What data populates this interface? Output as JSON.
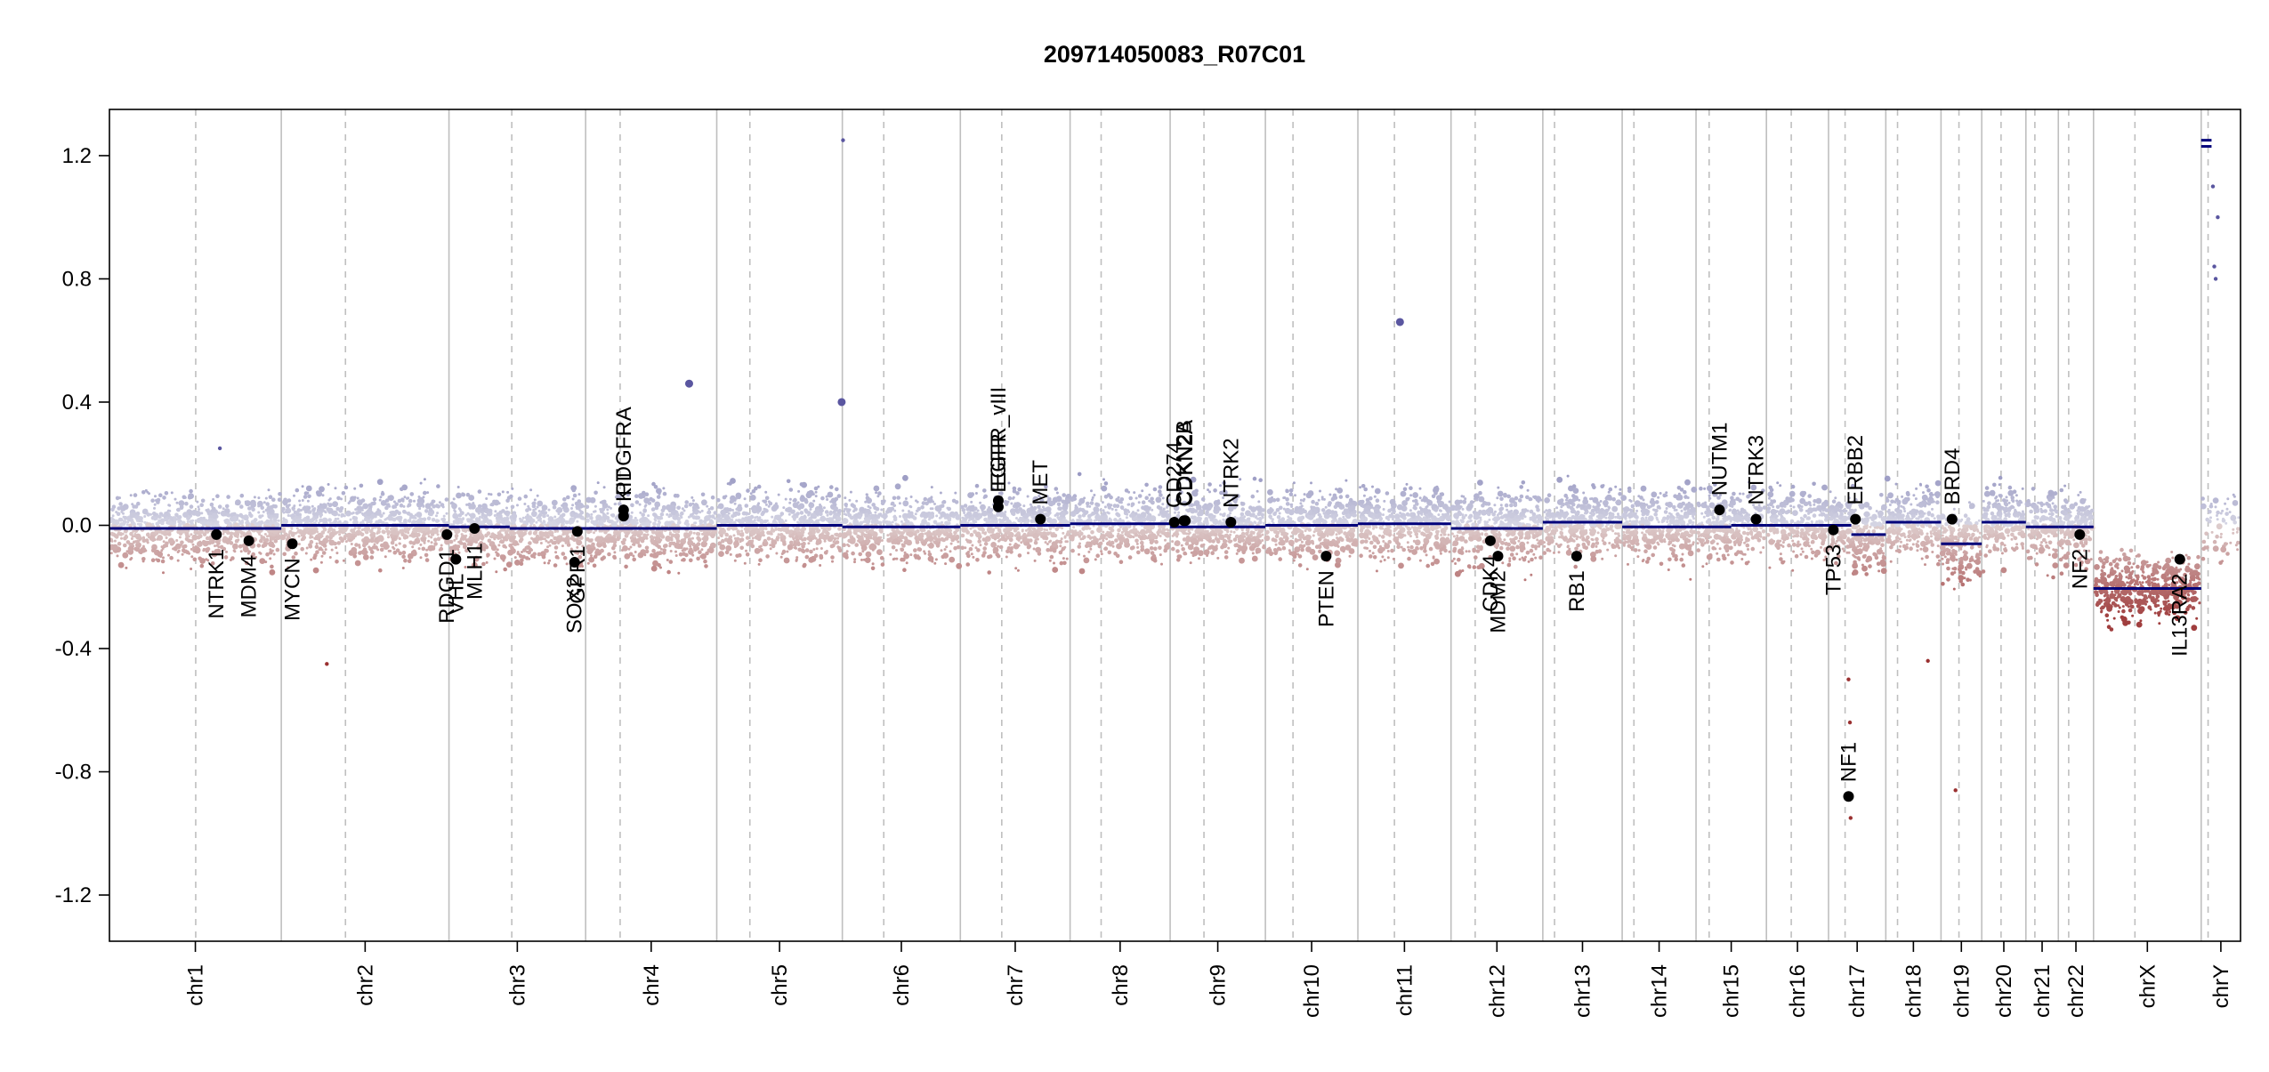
{
  "chart_data": {
    "type": "scatter",
    "title": "209714050083_R07C01",
    "xlabel": "",
    "ylabel": "",
    "ylim": [
      -1.35,
      1.35
    ],
    "yticks": [
      -1.2,
      -0.8,
      -0.4,
      0.0,
      0.4,
      0.8,
      1.2
    ],
    "ytick_labels": [
      "-1.2",
      "-0.8",
      "-0.4",
      "0.0",
      "0.4",
      "0.8",
      "1.2"
    ],
    "grid": false,
    "colors": {
      "gain": "#8080b8",
      "loss": "#b06060",
      "segment": "#00007a",
      "gene_point": "#000000",
      "chrom_boundary": "#bfbfbf",
      "centromere": "#bfbfbf"
    },
    "chromosomes": [
      {
        "name": "chr1",
        "start": 0,
        "end": 249,
        "centromere": 125
      },
      {
        "name": "chr2",
        "start": 249,
        "end": 492,
        "centromere": 93
      },
      {
        "name": "chr3",
        "start": 492,
        "end": 690,
        "centromere": 91
      },
      {
        "name": "chr4",
        "start": 690,
        "end": 880,
        "centromere": 50
      },
      {
        "name": "chr5",
        "start": 880,
        "end": 1062,
        "centromere": 48
      },
      {
        "name": "chr6",
        "start": 1062,
        "end": 1233,
        "centromere": 60
      },
      {
        "name": "chr7",
        "start": 1233,
        "end": 1392,
        "centromere": 60
      },
      {
        "name": "chr8",
        "start": 1392,
        "end": 1537,
        "centromere": 45
      },
      {
        "name": "chr9",
        "start": 1537,
        "end": 1675,
        "centromere": 49
      },
      {
        "name": "chr10",
        "start": 1675,
        "end": 1809,
        "centromere": 40
      },
      {
        "name": "chr11",
        "start": 1809,
        "end": 1944,
        "centromere": 53
      },
      {
        "name": "chr12",
        "start": 1944,
        "end": 2077,
        "centromere": 35
      },
      {
        "name": "chr13",
        "start": 2077,
        "end": 2192,
        "centromere": 17
      },
      {
        "name": "chr14",
        "start": 2192,
        "end": 2299,
        "centromere": 17
      },
      {
        "name": "chr15",
        "start": 2299,
        "end": 2401,
        "centromere": 19
      },
      {
        "name": "chr16",
        "start": 2401,
        "end": 2491,
        "centromere": 36
      },
      {
        "name": "chr17",
        "start": 2491,
        "end": 2574,
        "centromere": 24
      },
      {
        "name": "chr18",
        "start": 2574,
        "end": 2654,
        "centromere": 17
      },
      {
        "name": "chr19",
        "start": 2654,
        "end": 2713,
        "centromere": 26
      },
      {
        "name": "chr20",
        "start": 2713,
        "end": 2777,
        "centromere": 28
      },
      {
        "name": "chr21",
        "start": 2777,
        "end": 2824,
        "centromere": 13
      },
      {
        "name": "chr22",
        "start": 2824,
        "end": 2875,
        "centromere": 15
      },
      {
        "name": "chrX",
        "start": 2875,
        "end": 3031,
        "centromere": 60
      },
      {
        "name": "chrY",
        "start": 3031,
        "end": 3088,
        "centromere": 10
      }
    ],
    "segments": [
      {
        "x0": 0,
        "x1": 125,
        "y": -0.01
      },
      {
        "x0": 125,
        "x1": 249,
        "y": -0.01
      },
      {
        "x0": 249,
        "x1": 492,
        "y": 0.0
      },
      {
        "x0": 492,
        "x1": 580,
        "y": -0.005
      },
      {
        "x0": 580,
        "x1": 690,
        "y": -0.01
      },
      {
        "x0": 690,
        "x1": 880,
        "y": -0.01
      },
      {
        "x0": 880,
        "x1": 1062,
        "y": 0.0
      },
      {
        "x0": 1062,
        "x1": 1233,
        "y": -0.005
      },
      {
        "x0": 1233,
        "x1": 1392,
        "y": 0.0
      },
      {
        "x0": 1392,
        "x1": 1537,
        "y": 0.005
      },
      {
        "x0": 1537,
        "x1": 1675,
        "y": -0.005
      },
      {
        "x0": 1675,
        "x1": 1809,
        "y": 0.0
      },
      {
        "x0": 1809,
        "x1": 1944,
        "y": 0.005
      },
      {
        "x0": 1944,
        "x1": 2077,
        "y": -0.01
      },
      {
        "x0": 2077,
        "x1": 2192,
        "y": 0.01
      },
      {
        "x0": 2192,
        "x1": 2299,
        "y": -0.005
      },
      {
        "x0": 2299,
        "x1": 2350,
        "y": -0.005
      },
      {
        "x0": 2350,
        "x1": 2401,
        "y": 0.0
      },
      {
        "x0": 2401,
        "x1": 2491,
        "y": 0.0
      },
      {
        "x0": 2491,
        "x1": 2524,
        "y": 0.0
      },
      {
        "x0": 2524,
        "x1": 2574,
        "y": -0.03
      },
      {
        "x0": 2574,
        "x1": 2654,
        "y": 0.01
      },
      {
        "x0": 2654,
        "x1": 2713,
        "y": -0.06
      },
      {
        "x0": 2713,
        "x1": 2777,
        "y": 0.01
      },
      {
        "x0": 2777,
        "x1": 2824,
        "y": -0.005
      },
      {
        "x0": 2824,
        "x1": 2875,
        "y": -0.005
      },
      {
        "x0": 2875,
        "x1": 3031,
        "y": -0.205
      },
      {
        "x0": 3031,
        "x1": 3046,
        "y": 1.25
      },
      {
        "x0": 3031,
        "x1": 3046,
        "y": 1.23
      }
    ],
    "genes": [
      {
        "name": "NTRK1",
        "x": 155,
        "y": -0.03,
        "side": "below"
      },
      {
        "name": "MDM4",
        "x": 202,
        "y": -0.05,
        "side": "below"
      },
      {
        "name": "MYCN",
        "x": 265,
        "y": -0.06,
        "side": "below"
      },
      {
        "name": "RDGD1",
        "x": 489,
        "y": -0.03,
        "side": "below"
      },
      {
        "name": "VHL",
        "x": 502,
        "y": -0.11,
        "side": "below"
      },
      {
        "name": "MLH1",
        "x": 529,
        "y": -0.01,
        "side": "below"
      },
      {
        "name": "SOX2",
        "x": 674,
        "y": -0.12,
        "side": "below"
      },
      {
        "name": "GPR1",
        "x": 678,
        "y": -0.02,
        "side": "below"
      },
      {
        "name": "KIT",
        "x": 745,
        "y": 0.03,
        "side": "above"
      },
      {
        "name": "PDGFRA",
        "x": 745,
        "y": 0.05,
        "side": "above"
      },
      {
        "name": "EGFR",
        "x": 1288,
        "y": 0.06,
        "side": "above"
      },
      {
        "name": "EGFR_vIII",
        "x": 1288,
        "y": 0.08,
        "side": "above"
      },
      {
        "name": "MET",
        "x": 1349,
        "y": 0.02,
        "side": "above"
      },
      {
        "name": "CD274",
        "x": 1543,
        "y": 0.01,
        "side": "above"
      },
      {
        "name": "CDKN2B",
        "x": 1557,
        "y": 0.015,
        "side": "above"
      },
      {
        "name": "CDKN2A",
        "x": 1559,
        "y": 0.015,
        "side": "above"
      },
      {
        "name": "NTRK2",
        "x": 1625,
        "y": 0.01,
        "side": "above"
      },
      {
        "name": "PTEN",
        "x": 1763,
        "y": -0.1,
        "side": "below"
      },
      {
        "name": "CDK4",
        "x": 2001,
        "y": -0.05,
        "side": "below"
      },
      {
        "name": "MDM2",
        "x": 2012,
        "y": -0.1,
        "side": "below"
      },
      {
        "name": "RB1",
        "x": 2126,
        "y": -0.1,
        "side": "below"
      },
      {
        "name": "NUTM1",
        "x": 2333,
        "y": 0.05,
        "side": "above"
      },
      {
        "name": "NTRK3",
        "x": 2386,
        "y": 0.02,
        "side": "above"
      },
      {
        "name": "TP53",
        "x": 2498,
        "y": -0.015,
        "side": "below"
      },
      {
        "name": "NF1",
        "x": 2520,
        "y": -0.88,
        "side": "above"
      },
      {
        "name": "ERBB2",
        "x": 2530,
        "y": 0.02,
        "side": "above"
      },
      {
        "name": "BRD4",
        "x": 2670,
        "y": 0.02,
        "side": "above"
      },
      {
        "name": "NF2",
        "x": 2855,
        "y": -0.03,
        "side": "below"
      },
      {
        "name": "IL13RA2",
        "x": 3000,
        "y": -0.11,
        "side": "below"
      }
    ],
    "outliers": [
      {
        "x": 840,
        "y": 0.46,
        "kind": "gain"
      },
      {
        "x": 1061,
        "y": 0.4,
        "kind": "gain"
      },
      {
        "x": 1063,
        "y": 1.25,
        "kind": "gain"
      },
      {
        "x": 1870,
        "y": 0.66,
        "kind": "gain"
      },
      {
        "x": 160,
        "y": 0.25,
        "kind": "gain"
      },
      {
        "x": 315,
        "y": -0.45,
        "kind": "loss"
      },
      {
        "x": 2635,
        "y": -0.44,
        "kind": "loss"
      },
      {
        "x": 2675,
        "y": -0.86,
        "kind": "loss"
      },
      {
        "x": 2520,
        "y": -0.5,
        "kind": "loss"
      },
      {
        "x": 2522,
        "y": -0.64,
        "kind": "loss"
      },
      {
        "x": 2523,
        "y": -0.95,
        "kind": "loss"
      },
      {
        "x": 3048,
        "y": 1.1,
        "kind": "gain"
      },
      {
        "x": 3055,
        "y": 1.0,
        "kind": "gain"
      },
      {
        "x": 3050,
        "y": 0.84,
        "kind": "gain"
      },
      {
        "x": 3052,
        "y": 0.8,
        "kind": "gain"
      }
    ]
  }
}
